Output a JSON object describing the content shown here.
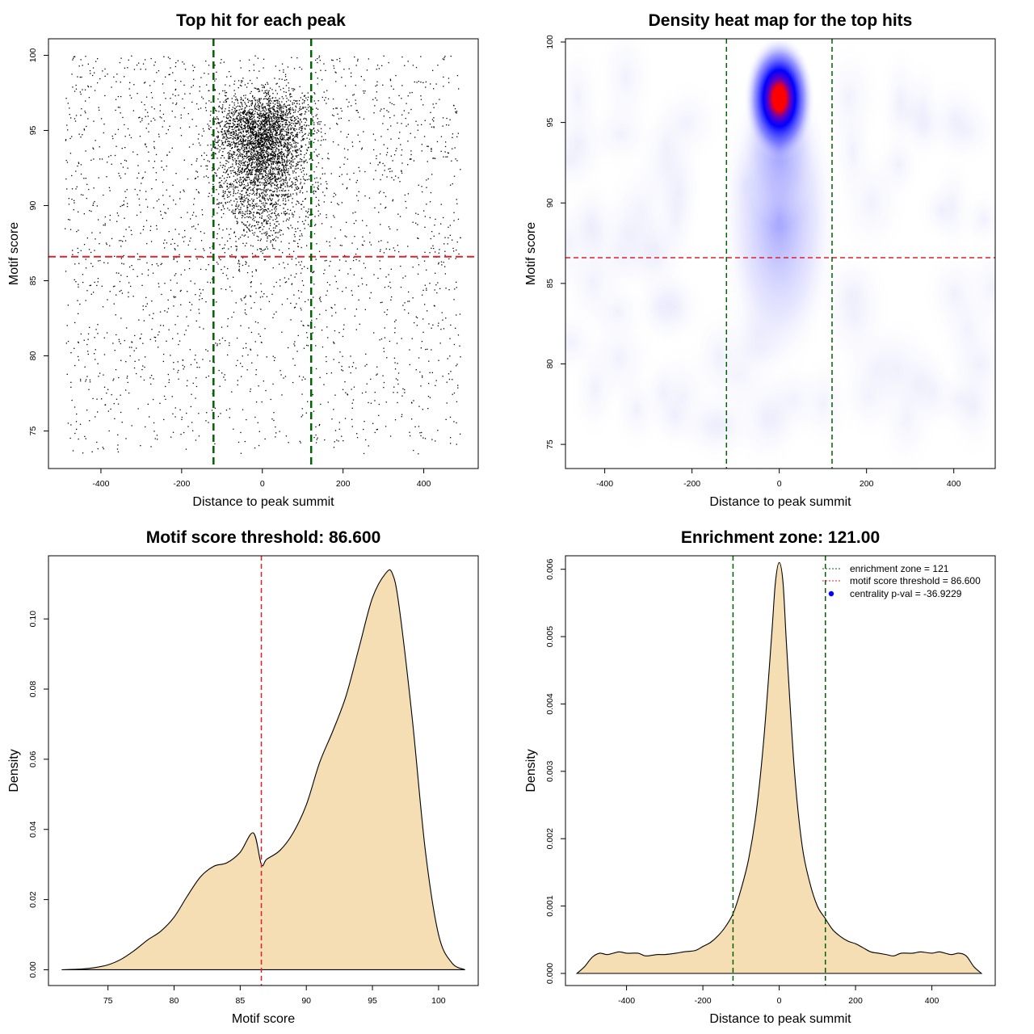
{
  "chart_data": [
    {
      "type": "scatter",
      "title": "Top hit for each peak",
      "xlabel": "Distance to peak summit",
      "ylabel": "Motif score",
      "xlim": [
        -530,
        535
      ],
      "ylim": [
        72.5,
        101.1
      ],
      "xticks": [
        -400,
        -200,
        0,
        200,
        400
      ],
      "yticks": [
        75,
        80,
        85,
        90,
        95,
        100
      ],
      "threshold_y": 86.6,
      "zone_x": [
        -121,
        121
      ],
      "colors": {
        "points": "#000000",
        "threshold": "#e0202a",
        "zone": "#006400"
      },
      "points_model": {
        "n_background": 2300,
        "n_central": 3600,
        "x_range": [
          -490,
          490
        ],
        "central_x_sd": 55,
        "central_y_peak": 96.5,
        "background_y_range": [
          73.5,
          100
        ]
      }
    },
    {
      "type": "heatmap",
      "title": "Density heat map for the top hits",
      "xlabel": "Distance to peak summit",
      "ylabel": "Motif score",
      "xlim": [
        -490,
        495
      ],
      "ylim": [
        73.5,
        100.2
      ],
      "xticks": [
        -400,
        -200,
        0,
        200,
        400
      ],
      "yticks": [
        75,
        80,
        85,
        90,
        95,
        100
      ],
      "threshold_y": 86.6,
      "zone_x": [
        -121,
        121
      ],
      "colors": {
        "low": "#ffffff",
        "mid": "#0000ff",
        "high": "#ff0000",
        "threshold": "#e0202a",
        "zone": "#006400"
      },
      "density_center": {
        "x": 0,
        "y": 96.5
      }
    },
    {
      "type": "area",
      "title": "Motif score threshold: 86.600",
      "xlabel": "Motif score",
      "ylabel": "Density",
      "xlim": [
        70.5,
        103
      ],
      "ylim": [
        -0.0045,
        0.118
      ],
      "xticks": [
        75,
        80,
        85,
        90,
        95,
        100
      ],
      "yticks": [
        0.0,
        0.02,
        0.04,
        0.06,
        0.08,
        0.1
      ],
      "ytick_labels": [
        "0.00",
        "0.02",
        "0.04",
        "0.06",
        "0.08",
        "0.10"
      ],
      "threshold_x": 86.6,
      "fill": "#f5deb3",
      "colors": {
        "threshold": "#e0202a"
      },
      "x": [
        71.5,
        73,
        74,
        75,
        76,
        77,
        78,
        79,
        80,
        81,
        82,
        83,
        84,
        85,
        86,
        86.6,
        87,
        88,
        89,
        90,
        91,
        92,
        93,
        94,
        95,
        96,
        96.5,
        97,
        98,
        99,
        100,
        101,
        102
      ],
      "y": [
        0.0,
        0.0002,
        0.0006,
        0.0014,
        0.003,
        0.0055,
        0.0085,
        0.011,
        0.015,
        0.021,
        0.0265,
        0.0295,
        0.0305,
        0.0335,
        0.039,
        0.03,
        0.0315,
        0.034,
        0.039,
        0.047,
        0.059,
        0.068,
        0.078,
        0.092,
        0.106,
        0.113,
        0.113,
        0.104,
        0.072,
        0.034,
        0.01,
        0.002,
        0.0
      ]
    },
    {
      "type": "area",
      "title": "Enrichment zone: 121.00",
      "xlabel": "Distance to peak summit",
      "ylabel": "Density",
      "xlim": [
        -560,
        566
      ],
      "ylim": [
        -0.00018,
        0.0062
      ],
      "xticks": [
        -400,
        -200,
        0,
        200,
        400
      ],
      "yticks": [
        0.0,
        0.001,
        0.002,
        0.003,
        0.004,
        0.005,
        0.006
      ],
      "ytick_labels": [
        "0.000",
        "0.001",
        "0.002",
        "0.003",
        "0.004",
        "0.005",
        "0.006"
      ],
      "zone_x": [
        -121,
        121
      ],
      "fill": "#f5deb3",
      "colors": {
        "zone": "#006400",
        "threshold": "#e0202a",
        "pval": "#0000ff"
      },
      "x": [
        -530,
        -510,
        -490,
        -470,
        -450,
        -420,
        -400,
        -370,
        -350,
        -320,
        -300,
        -270,
        -250,
        -220,
        -200,
        -180,
        -160,
        -140,
        -120,
        -100,
        -80,
        -60,
        -40,
        -20,
        -10,
        0,
        10,
        20,
        40,
        60,
        80,
        100,
        120,
        140,
        160,
        180,
        200,
        220,
        240,
        260,
        280,
        300,
        320,
        350,
        370,
        400,
        420,
        450,
        470,
        490,
        510,
        530
      ],
      "y": [
        0.0,
        0.0001,
        0.00024,
        0.0003,
        0.00028,
        0.00032,
        0.0003,
        0.0003,
        0.00026,
        0.00028,
        0.00028,
        0.0003,
        0.00032,
        0.00034,
        0.0004,
        0.00046,
        0.00056,
        0.0007,
        0.0009,
        0.00125,
        0.0017,
        0.0024,
        0.0035,
        0.005,
        0.0058,
        0.0061,
        0.0058,
        0.0048,
        0.003,
        0.0019,
        0.00135,
        0.001,
        0.00082,
        0.00065,
        0.00055,
        0.00048,
        0.00044,
        0.00038,
        0.00032,
        0.0003,
        0.00028,
        0.00026,
        0.0003,
        0.0003,
        0.00032,
        0.0003,
        0.00032,
        0.00028,
        0.0003,
        0.00026,
        0.0001,
        0.0
      ]
    }
  ],
  "legend": {
    "items": [
      {
        "label": "enrichment zone = 121",
        "type": "dotted-line",
        "color": "#006400"
      },
      {
        "label": "motif score threshold = 86.600",
        "type": "dotted-line",
        "color": "#e0202a"
      },
      {
        "label": "centrality p-val = -36.9229",
        "type": "dot",
        "color": "#0000ff"
      }
    ]
  }
}
